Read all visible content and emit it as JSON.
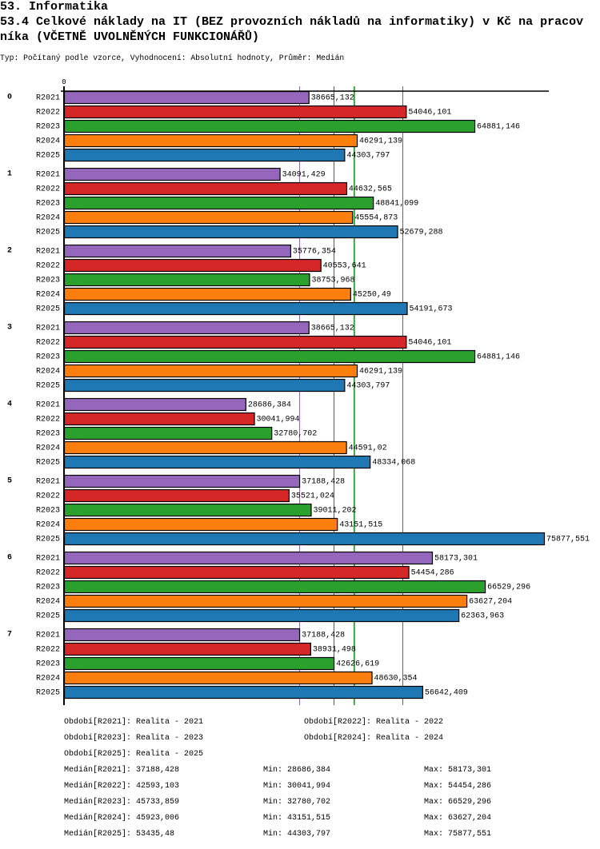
{
  "page": {
    "section_title": "53. Informatika",
    "chart_title": "53.4 Celkové náklady na IT (BEZ provozních nákladů na informatiky) v Kč na pracovníka (VČETNĚ UVOLNĚNÝCH FUNKCIONÁŘŮ)",
    "subtitle": "Typ: Počítaný podle vzorce, Vyhodnocení: Absolutní hodnoty, Průměr: Medián"
  },
  "chart_data": {
    "type": "bar",
    "orientation": "horizontal",
    "title": "53.4 Celkové náklady na IT (BEZ provozních nákladů na informatiky) v Kč na pracovníka (VČETNĚ UVOLNĚNÝCH FUNKCIONÁŘŮ)",
    "xlabel": "",
    "ylabel": "",
    "xlim": [
      0,
      76636
    ],
    "x_tick_labels": [
      "0"
    ],
    "grid": false,
    "legend": "bottom",
    "categories": [
      "0",
      "1",
      "2",
      "3",
      "4",
      "5",
      "6",
      "7"
    ],
    "series": [
      {
        "name": "R2021",
        "color": "#9467bd",
        "values": [
          38665.132,
          34091.429,
          35776.354,
          38665.132,
          28686.384,
          37188.428,
          58173.301,
          37188.428
        ],
        "value_labels": [
          "38665,132",
          "34091,429",
          "35776,354",
          "38665,132",
          "28686,384",
          "37188,428",
          "58173,301",
          "37188,428"
        ]
      },
      {
        "name": "R2022",
        "color": "#d62728",
        "values": [
          54046.101,
          44632.565,
          40553.641,
          54046.101,
          30041.994,
          35521.024,
          54454.286,
          38931.498
        ],
        "value_labels": [
          "54046,101",
          "44632,565",
          "40553,641",
          "54046,101",
          "30041,994",
          "35521,024",
          "54454,286",
          "38931,498"
        ]
      },
      {
        "name": "R2023",
        "color": "#2ca02c",
        "values": [
          64881.146,
          48841.099,
          38753.968,
          64881.146,
          32780.702,
          39011.202,
          66529.296,
          42626.619
        ],
        "value_labels": [
          "64881,146",
          "48841,099",
          "38753,968",
          "64881,146",
          "32780,702",
          "39011,202",
          "66529,296",
          "42626,619"
        ]
      },
      {
        "name": "R2024",
        "color": "#ff7f0e",
        "values": [
          46291.139,
          45554.873,
          45250.49,
          46291.139,
          44591.02,
          43151.515,
          63627.204,
          48630.354
        ],
        "value_labels": [
          "46291,139",
          "45554,873",
          "45250,49",
          "46291,139",
          "44591,02",
          "43151,515",
          "63627,204",
          "48630,354"
        ]
      },
      {
        "name": "R2025",
        "color": "#1f77b4",
        "values": [
          44303.797,
          52679.288,
          54191.673,
          44303.797,
          48334.068,
          75877.551,
          62363.963,
          56642.409
        ],
        "value_labels": [
          "44303,797",
          "52679,288",
          "54191,673",
          "44303,797",
          "48334,068",
          "75877,551",
          "62363,963",
          "56642,409"
        ]
      }
    ],
    "median_lines": [
      {
        "series": "R2021",
        "value": 37188.428,
        "color": "#9467bd"
      },
      {
        "series": "R2022",
        "value": 42593.103,
        "color": "#d62728"
      },
      {
        "series": "R2023",
        "value": 45733.859,
        "color": "#2ca02c"
      },
      {
        "series": "R2024",
        "value": 45923.006,
        "color": "#ff7f0e"
      },
      {
        "series": "R2025",
        "value": 53435.48,
        "color": "#1f77b4"
      }
    ]
  },
  "legend": {
    "items": [
      {
        "label": "Období[R2021]: Realita - 2021"
      },
      {
        "label": "Období[R2022]: Realita - 2022"
      },
      {
        "label": "Období[R2023]: Realita - 2023"
      },
      {
        "label": "Období[R2024]: Realita - 2024"
      },
      {
        "label": "Období[R2025]: Realita - 2025"
      }
    ]
  },
  "stats": [
    {
      "median": "Medián[R2021]: 37188,428",
      "min": "Min: 28686,384",
      "max": "Max: 58173,301"
    },
    {
      "median": "Medián[R2022]: 42593,103",
      "min": "Min: 30041,994",
      "max": "Max: 54454,286"
    },
    {
      "median": "Medián[R2023]: 45733,859",
      "min": "Min: 32780,702",
      "max": "Max: 66529,296"
    },
    {
      "median": "Medián[R2024]: 45923,006",
      "min": "Min: 43151,515",
      "max": "Max: 63627,204"
    },
    {
      "median": "Medián[R2025]: 53435,48",
      "min": "Min: 44303,797",
      "max": "Max: 75877,551"
    }
  ]
}
